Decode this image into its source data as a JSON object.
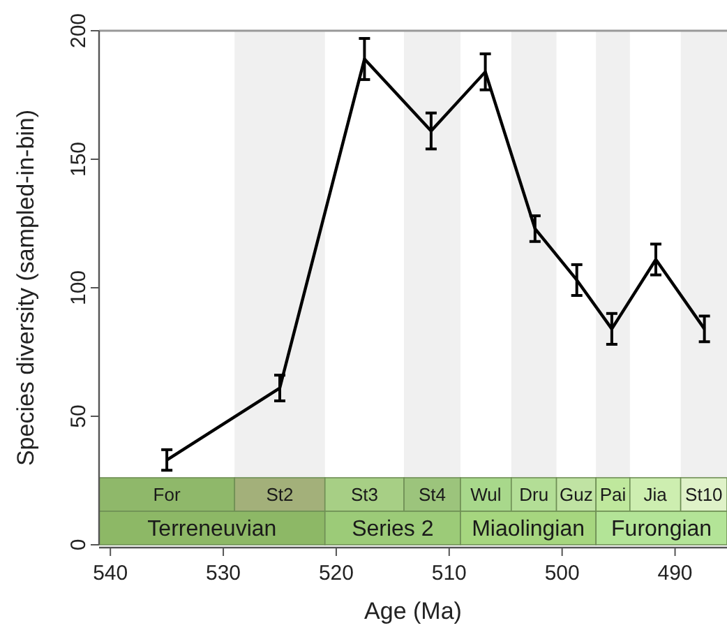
{
  "chart_data": {
    "type": "line",
    "xlabel": "Age (Ma)",
    "ylabel": "Species diversity (sampled-in-bin)",
    "x": [
      535,
      525,
      517.5,
      511.6,
      506.8,
      502.4,
      498.7,
      495.6,
      491.7,
      487.4
    ],
    "series": [
      {
        "color": "#000000",
        "values": [
          33,
          61,
          189,
          161,
          184,
          123,
          103,
          84,
          111,
          84
        ],
        "errors": [
          4,
          5,
          8,
          7,
          7,
          5,
          6,
          6,
          6,
          5
        ]
      }
    ],
    "xlim": [
      541,
      485.4
    ],
    "xticks": [
      540,
      530,
      520,
      510,
      500,
      490
    ],
    "ylim": [
      0,
      200
    ],
    "yticks": [
      0,
      50,
      100,
      150,
      200
    ],
    "marker": "none",
    "line_style": "solid",
    "grid": false,
    "bands": [
      {
        "axis": "x",
        "from": 529,
        "to": 521,
        "color": "#f0f0f0"
      },
      {
        "axis": "x",
        "from": 514,
        "to": 509,
        "color": "#f0f0f0"
      },
      {
        "axis": "x",
        "from": 504.5,
        "to": 500.5,
        "color": "#f0f0f0"
      },
      {
        "axis": "x",
        "from": 497,
        "to": 494,
        "color": "#f0f0f0"
      },
      {
        "axis": "x",
        "from": 489.5,
        "to": 485.4,
        "color": "#f0f0f0"
      },
      {
        "axis": "x",
        "from": 541,
        "to": 529,
        "label": "For",
        "color": "#8fb86a"
      },
      {
        "axis": "x",
        "from": 529,
        "to": 521,
        "label": "St2",
        "color": "#a3b07a"
      },
      {
        "axis": "x",
        "from": 521,
        "to": 514,
        "label": "St3",
        "color": "#a7cf85"
      },
      {
        "axis": "x",
        "from": 514,
        "to": 509,
        "label": "St4",
        "color": "#9cc47c"
      },
      {
        "axis": "x",
        "from": 509,
        "to": 504.5,
        "label": "Wul",
        "color": "#a8d88b"
      },
      {
        "axis": "x",
        "from": 504.5,
        "to": 500.5,
        "label": "Dru",
        "color": "#b3de96"
      },
      {
        "axis": "x",
        "from": 500.5,
        "to": 497,
        "label": "Guz",
        "color": "#c0e3a3"
      },
      {
        "axis": "x",
        "from": 497,
        "to": 494,
        "label": "Pai",
        "color": "#bfe89d"
      },
      {
        "axis": "x",
        "from": 494,
        "to": 489.5,
        "label": "Jia",
        "color": "#cdeeb0"
      },
      {
        "axis": "x",
        "from": 489.5,
        "to": 485.4,
        "label": "St10",
        "color": "#dff2c8"
      },
      {
        "axis": "x",
        "from": 541,
        "to": 521,
        "label": "Terreneuvian",
        "color": "#8db866"
      },
      {
        "axis": "x",
        "from": 521,
        "to": 509,
        "label": "Series 2",
        "color": "#9ccb78"
      },
      {
        "axis": "x",
        "from": 509,
        "to": 497,
        "label": "Miaolingian",
        "color": "#a6d67f"
      },
      {
        "axis": "x",
        "from": 497,
        "to": 485.4,
        "label": "Furongian",
        "color": "#b3e497"
      }
    ]
  }
}
